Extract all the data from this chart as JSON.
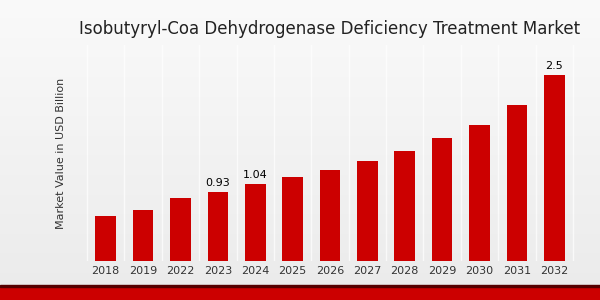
{
  "title": "Isobutyryl-Coa Dehydrogenase Deficiency Treatment Market",
  "ylabel": "Market Value in USD Billion",
  "years": [
    "2018",
    "2019",
    "2022",
    "2023",
    "2024",
    "2025",
    "2026",
    "2027",
    "2028",
    "2029",
    "2030",
    "2031",
    "2032"
  ],
  "values": [
    0.6,
    0.68,
    0.85,
    0.93,
    1.04,
    1.13,
    1.22,
    1.34,
    1.48,
    1.65,
    1.82,
    2.1,
    2.5
  ],
  "bar_color": "#cc0000",
  "bar_labels": {
    "2023": "0.93",
    "2024": "1.04",
    "2032": "2.5"
  },
  "bg_top": "#f0f0f0",
  "bg_bottom": "#d8d8d8",
  "title_fontsize": 12,
  "ylabel_fontsize": 8,
  "tick_fontsize": 8,
  "label_fontsize": 8,
  "ylim": [
    0,
    2.9
  ],
  "bar_width": 0.55,
  "bottom_bar_color": "#cc0000",
  "bottom_bar_height": 0.045
}
